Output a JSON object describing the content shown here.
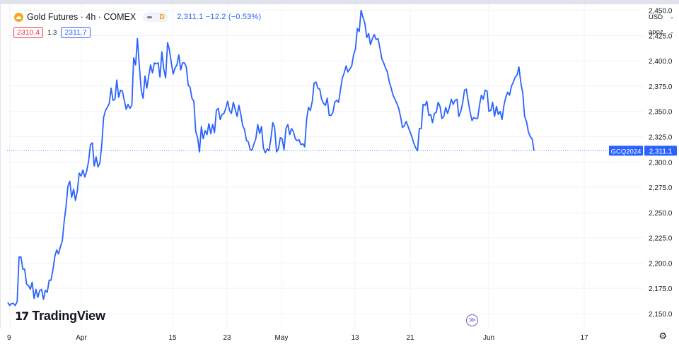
{
  "header": {
    "symbol": "Gold Futures · 4h · COMEX",
    "mode_badge": "D",
    "price_info": "2,311.1  −12.2 (−0.53%)",
    "bid": "2310.4",
    "spread": "1.3",
    "ask": "2311.7"
  },
  "controls": {
    "currency": "USD",
    "scale": "apoz"
  },
  "watermark": "TradingView",
  "last_price_tag": {
    "ticker": "GCQ2024",
    "price": "2,311.1"
  },
  "colors": {
    "line": "#2962ff",
    "bid": "#f23645",
    "ask": "#2962ff",
    "badge": "#ff9800",
    "goto": "#7e57c2"
  },
  "icons": {
    "logo": "gold-coin-icon",
    "goto": "go-to-realtime-icon",
    "settings": "gear-icon"
  },
  "chart_data": {
    "type": "line",
    "series": [
      {
        "values": [
          2161,
          2158,
          2160,
          2160,
          2158,
          2162,
          2206,
          2206,
          2194,
          2194,
          2179,
          2178,
          2174,
          2181,
          2165,
          2174,
          2166,
          2173,
          2174,
          2164,
          2173,
          2171,
          2183,
          2183,
          2193,
          2206,
          2213,
          2209,
          2216,
          2222,
          2241,
          2256,
          2276,
          2281,
          2265,
          2273,
          2262,
          2271,
          2289,
          2286,
          2292,
          2285,
          2291,
          2301,
          2317,
          2319,
          2296,
          2305,
          2295,
          2299,
          2317,
          2344,
          2351,
          2354,
          2358,
          2373,
          2361,
          2362,
          2381,
          2364,
          2371,
          2370,
          2361,
          2352,
          2357,
          2353,
          2356,
          2403,
          2396,
          2422,
          2395,
          2371,
          2363,
          2385,
          2373,
          2385,
          2396,
          2388,
          2398,
          2397,
          2398,
          2384,
          2409,
          2392,
          2383,
          2418,
          2411,
          2398,
          2387,
          2393,
          2396,
          2406,
          2391,
          2398,
          2398,
          2394,
          2376,
          2374,
          2363,
          2360,
          2330,
          2324,
          2310,
          2335,
          2323,
          2331,
          2327,
          2338,
          2328,
          2337,
          2329,
          2351,
          2353,
          2342,
          2347,
          2348,
          2353,
          2360,
          2351,
          2348,
          2359,
          2352,
          2345,
          2356,
          2347,
          2336,
          2332,
          2321,
          2320,
          2312,
          2312,
          2318,
          2323,
          2337,
          2328,
          2335,
          2314,
          2309,
          2313,
          2311,
          2323,
          2339,
          2334,
          2310,
          2313,
          2324,
          2323,
          2312,
          2333,
          2337,
          2327,
          2333,
          2330,
          2323,
          2321,
          2322,
          2317,
          2318,
          2315,
          2342,
          2354,
          2351,
          2360,
          2378,
          2379,
          2373,
          2372,
          2362,
          2358,
          2356,
          2363,
          2346,
          2346,
          2349,
          2359,
          2361,
          2359,
          2371,
          2383,
          2388,
          2395,
          2389,
          2392,
          2395,
          2406,
          2412,
          2432,
          2429,
          2450,
          2443,
          2437,
          2423,
          2427,
          2416,
          2422,
          2426,
          2421,
          2422,
          2413,
          2402,
          2398,
          2393,
          2389,
          2379,
          2373,
          2366,
          2362,
          2358,
          2353,
          2345,
          2334,
          2336,
          2340,
          2335,
          2330,
          2325,
          2319,
          2314,
          2311
        ],
        "interp_range": [
          2333,
          2333,
          2357,
          2356,
          2360,
          2346,
          2347,
          2339,
          2348,
          2349,
          2359,
          2355,
          2343,
          2345,
          2354,
          2348,
          2354,
          2362,
          2357,
          2361,
          2362,
          2345,
          2350,
          2358,
          2371,
          2372,
          2360,
          2349,
          2341,
          2344,
          2343,
          2343,
          2356,
          2366,
          2362,
          2371,
          2370,
          2350,
          2351,
          2359,
          2345,
          2355,
          2347,
          2350,
          2342,
          2356,
          2364,
          2369,
          2366,
          2375,
          2379,
          2384,
          2386,
          2394,
          2378,
          2368,
          2345,
          2340,
          2330,
          2325,
          2323,
          2311
        ]
      }
    ],
    "x_ticks": [
      "9",
      "Apr",
      "15",
      "23",
      "May",
      "13",
      "21",
      "Jun",
      "17"
    ],
    "y_ticks": [
      "2,450.0",
      "2,425.0",
      "2,400.0",
      "2,375.0",
      "2,350.0",
      "2,325.0",
      "2,300.0",
      "2,275.0",
      "2,250.0",
      "2,225.0",
      "2,200.0",
      "2,175.0",
      "2,150.0"
    ],
    "ylim": [
      2136,
      2456
    ],
    "last_value": 2311.1,
    "grid": true
  }
}
